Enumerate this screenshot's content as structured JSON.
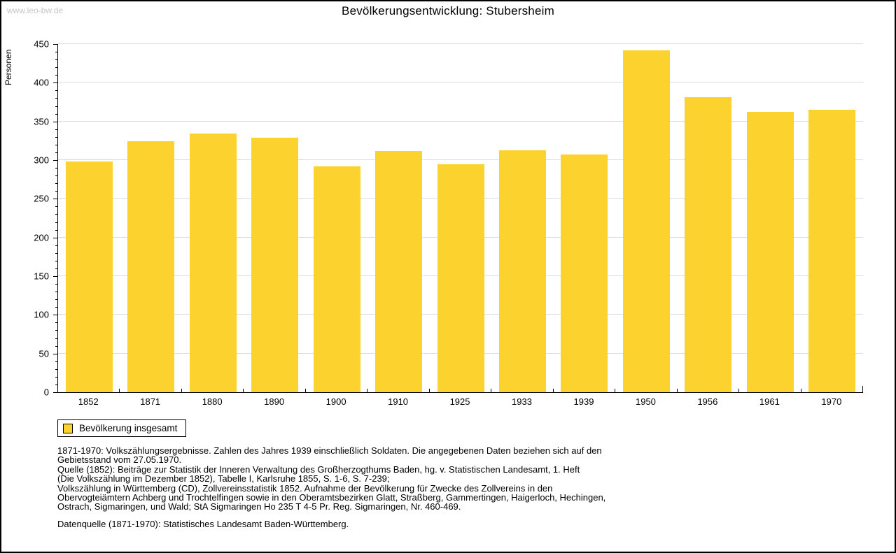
{
  "page": {
    "watermark": "www.leo-bw.de",
    "title": "Bevölkerungsentwicklung: Stubersheim"
  },
  "chart_data": {
    "type": "bar",
    "title": "Bevölkerungsentwicklung: Stubersheim",
    "xlabel": "",
    "ylabel": "Personen",
    "series_name": "Bevölkerung insgesamt",
    "categories": [
      "1852",
      "1871",
      "1880",
      "1890",
      "1900",
      "1910",
      "1925",
      "1933",
      "1939",
      "1950",
      "1956",
      "1961",
      "1970"
    ],
    "values": [
      298,
      324,
      334,
      329,
      292,
      312,
      295,
      313,
      307,
      442,
      381,
      362,
      365
    ],
    "ylim": [
      0,
      450
    ],
    "ytick_step": 50,
    "y_minor_step": 10,
    "grid": true,
    "legend_position": "bottom-left",
    "bar_color": "#FCD32E"
  },
  "legend": {
    "label": "Bevölkerung insgesamt",
    "swatch_color": "#FCD32E"
  },
  "footnotes": {
    "lines": [
      "1871-1970: Volkszählungsergebnisse. Zahlen des Jahres 1939 einschließlich Soldaten. Die angegebenen Daten beziehen sich auf den",
      "Gebietsstand vom 27.05.1970.",
      "Quelle (1852): Beiträge zur Statistik der Inneren Verwaltung des Großherzogthums Baden, hg. v. Statistischen Landesamt, 1. Heft",
      "(Die Volkszählung im Dezember 1852), Tabelle I, Karlsruhe 1855, S. 1-6, S. 7-239;",
      "Volkszählung in Württemberg (CD), Zollvereinsstatistik 1852. Aufnahme der Bevölkerung für Zwecke des Zollvereins in den",
      "Obervogteiämtern Achberg und Trochtelfingen sowie in den Oberamtsbezirken Glatt, Straßberg, Gammertingen, Haigerloch, Hechingen,",
      "Ostrach, Sigmaringen, und Wald; StA Sigmaringen Ho 235 T 4-5 Pr. Reg. Sigmaringen, Nr. 460-469."
    ],
    "datasource": "Datenquelle (1871-1970): Statistisches Landesamt Baden-Württemberg."
  },
  "colors": {
    "bar": "#FCD32E",
    "grid": "#DBDBDB",
    "axis": "#000000",
    "watermark": "#C6C6C6"
  }
}
